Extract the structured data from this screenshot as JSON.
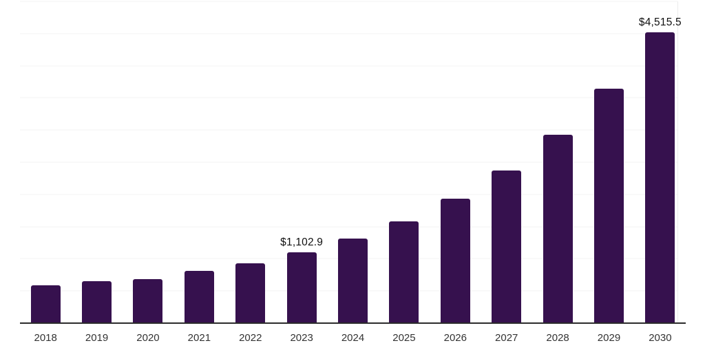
{
  "chart_data": {
    "type": "bar",
    "title": "",
    "xlabel": "",
    "ylabel": "",
    "categories": [
      "2018",
      "2019",
      "2020",
      "2021",
      "2022",
      "2023",
      "2024",
      "2025",
      "2026",
      "2027",
      "2028",
      "2029",
      "2030"
    ],
    "values": [
      590,
      650,
      685,
      810,
      930,
      1102.9,
      1315,
      1580,
      1930,
      2370,
      2925,
      3640,
      4515.5
    ],
    "value_labels": {
      "2023": "$1,102.9",
      "2030": "$4,515.5"
    },
    "ylim": [
      0,
      5000
    ],
    "gridline_interval": 500,
    "grid": "horizontal-only",
    "legend": "none",
    "bar_color": "#36114e",
    "gridline_color": "#f3f3f3",
    "plot_border_color": "#ececec",
    "axis_line_color": "#2b2b2b",
    "value_label_color": "#0f0f0f",
    "tick_label_color": "#333333",
    "background_color": "#ffffff"
  }
}
